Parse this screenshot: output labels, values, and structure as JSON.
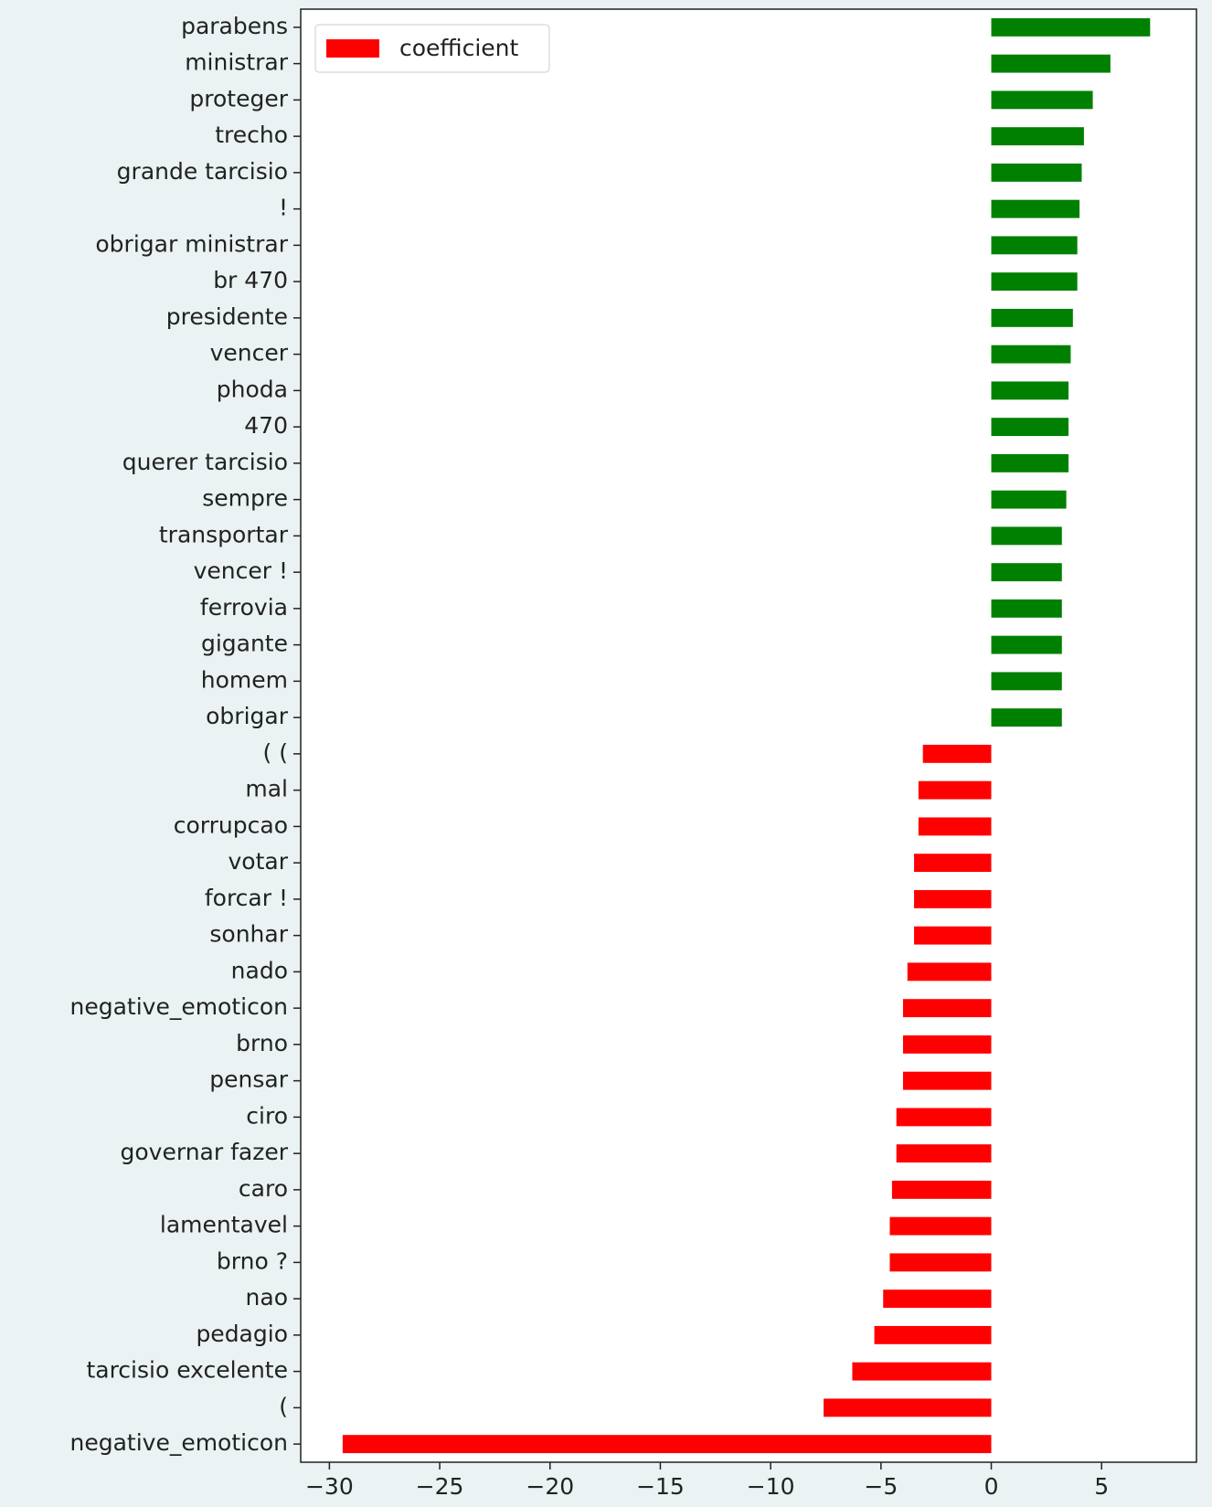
{
  "chart_data": {
    "type": "barh",
    "categories": [
      "parabens",
      "ministrar",
      "proteger",
      "trecho",
      "grande tarcisio",
      "!",
      "obrigar ministrar",
      "br 470",
      "presidente",
      "vencer",
      "phoda",
      "470",
      "querer tarcisio",
      "sempre",
      "transportar",
      "vencer !",
      "ferrovia",
      "gigante",
      "homem",
      "obrigar",
      "( (",
      "mal",
      "corrupcao",
      "votar",
      "forcar !",
      "sonhar",
      "nado",
      "negative_emoticon",
      "brno",
      "pensar",
      "ciro",
      "governar fazer",
      "caro",
      "lamentavel",
      "brno ?",
      "nao",
      "pedagio",
      "tarcisio excelente",
      "(",
      "negative_emoticon"
    ],
    "series": [
      {
        "name": "coefficient",
        "color": "#ff0000",
        "values": [
          7.2,
          5.4,
          4.6,
          4.2,
          4.1,
          4.0,
          3.9,
          3.9,
          3.7,
          3.6,
          3.5,
          3.5,
          3.5,
          3.4,
          3.2,
          3.2,
          3.2,
          3.2,
          3.2,
          3.2,
          -3.1,
          -3.3,
          -3.3,
          -3.5,
          -3.5,
          -3.5,
          -3.8,
          -4.0,
          -4.0,
          -4.0,
          -4.3,
          -4.3,
          -4.5,
          -4.6,
          -4.6,
          -4.9,
          -5.3,
          -6.3,
          -7.6,
          -29.4
        ]
      }
    ],
    "colors": [
      "#008000",
      "#008000",
      "#008000",
      "#008000",
      "#008000",
      "#008000",
      "#008000",
      "#008000",
      "#008000",
      "#008000",
      "#008000",
      "#008000",
      "#008000",
      "#008000",
      "#008000",
      "#008000",
      "#008000",
      "#008000",
      "#008000",
      "#008000",
      "#ff0000",
      "#ff0000",
      "#ff0000",
      "#ff0000",
      "#ff0000",
      "#ff0000",
      "#ff0000",
      "#ff0000",
      "#ff0000",
      "#ff0000",
      "#ff0000",
      "#ff0000",
      "#ff0000",
      "#ff0000",
      "#ff0000",
      "#ff0000",
      "#ff0000",
      "#ff0000",
      "#ff0000",
      "#ff0000"
    ],
    "xlim": [
      -31.3,
      9.3
    ],
    "xticks": [
      {
        "value": -30,
        "label": "−30"
      },
      {
        "value": -25,
        "label": "−25"
      },
      {
        "value": -20,
        "label": "−20"
      },
      {
        "value": -15,
        "label": "−15"
      },
      {
        "value": -10,
        "label": "−10"
      },
      {
        "value": -5,
        "label": "−5"
      },
      0,
      5
    ],
    "legend": "upper left"
  }
}
